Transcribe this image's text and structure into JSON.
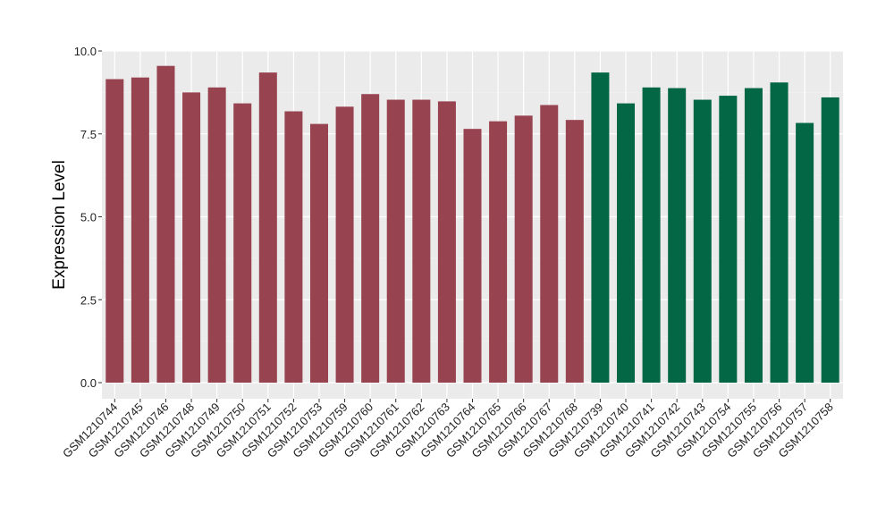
{
  "chart_data": {
    "type": "bar",
    "ylabel": "Expression Level",
    "xlabel": "",
    "ylim": [
      0,
      10
    ],
    "yticks": [
      "0.0",
      "2.5",
      "5.0",
      "7.5",
      "10.0"
    ],
    "grid": true,
    "background": "#ebebeb",
    "categories": [
      "GSM1210744",
      "GSM1210745",
      "GSM1210746",
      "GSM1210748",
      "GSM1210749",
      "GSM1210750",
      "GSM1210751",
      "GSM1210752",
      "GSM1210753",
      "GSM1210759",
      "GSM1210760",
      "GSM1210761",
      "GSM1210762",
      "GSM1210763",
      "GSM1210764",
      "GSM1210765",
      "GSM1210766",
      "GSM1210767",
      "GSM1210768",
      "GSM1210739",
      "GSM1210740",
      "GSM1210741",
      "GSM1210742",
      "GSM1210743",
      "GSM1210754",
      "GSM1210755",
      "GSM1210756",
      "GSM1210757",
      "GSM1210758"
    ],
    "values": [
      9.15,
      9.2,
      9.55,
      8.75,
      8.9,
      8.42,
      9.35,
      8.18,
      7.8,
      8.32,
      8.7,
      8.53,
      8.53,
      8.48,
      7.65,
      7.88,
      8.05,
      8.37,
      7.92,
      9.35,
      8.42,
      8.9,
      8.88,
      8.53,
      8.65,
      8.88,
      9.05,
      7.83,
      8.6
    ],
    "groups": [
      0,
      0,
      0,
      0,
      0,
      0,
      0,
      0,
      0,
      0,
      0,
      0,
      0,
      0,
      0,
      0,
      0,
      0,
      0,
      1,
      1,
      1,
      1,
      1,
      1,
      1,
      1,
      1,
      1
    ],
    "colors": [
      "#984350",
      "#036644"
    ]
  }
}
